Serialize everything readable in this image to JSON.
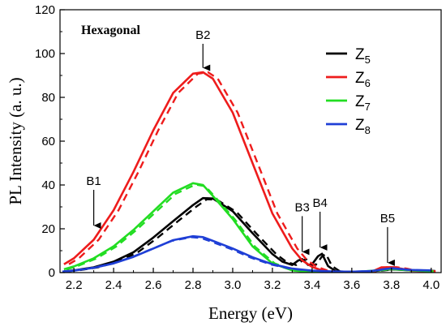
{
  "chart_data": {
    "type": "line",
    "inset_title": "Hexagonal",
    "xlabel": "Energy (eV)",
    "ylabel": "PL Intensity (a. u.)",
    "xlim": [
      2.13,
      4.05
    ],
    "ylim": [
      0,
      120
    ],
    "xticks": [
      2.2,
      2.4,
      2.6,
      2.8,
      3.0,
      3.2,
      3.4,
      3.6,
      3.8,
      4.0
    ],
    "xtick_labels": [
      "2.2",
      "2.4",
      "2.6",
      "2.8",
      "3.0",
      "3.2",
      "3.4",
      "3.6",
      "3.8",
      "4.0"
    ],
    "yticks": [
      0,
      20,
      40,
      60,
      80,
      100,
      120
    ],
    "ytick_labels": [
      "0",
      "20",
      "40",
      "60",
      "80",
      "100",
      "120"
    ],
    "grid": false,
    "legend_position": "top-right",
    "annotations": [
      {
        "label": "B1",
        "x": 2.3,
        "y_tip": 20
      },
      {
        "label": "B2",
        "x": 2.85,
        "y_tip": 92
      },
      {
        "label": "B3",
        "x": 3.35,
        "y_tip": 8
      },
      {
        "label": "B4",
        "x": 3.44,
        "y_tip": 10
      },
      {
        "label": "B5",
        "x": 3.78,
        "y_tip": 3
      }
    ],
    "series": [
      {
        "legend_main": "Z",
        "legend_sub": "5",
        "color": "#000000",
        "x": [
          2.15,
          2.2,
          2.3,
          2.4,
          2.5,
          2.6,
          2.7,
          2.8,
          2.85,
          2.9,
          3.0,
          3.1,
          3.2,
          3.25,
          3.3,
          3.33,
          3.35,
          3.38,
          3.4,
          3.43,
          3.45,
          3.48,
          3.52,
          3.6,
          3.7,
          3.8,
          3.9,
          4.0
        ],
        "y": [
          0.6,
          1.0,
          2.4,
          5.0,
          9.3,
          16.0,
          23.5,
          30.8,
          34.0,
          33.8,
          28.0,
          18.0,
          8.5,
          5.0,
          3.5,
          5.5,
          6.2,
          3.5,
          3.8,
          7.5,
          8.6,
          3.0,
          0.6,
          0.3,
          0.6,
          1.5,
          1.0,
          0.8
        ]
      },
      {
        "legend_main": "Z",
        "legend_sub": "6",
        "color": "#ee1c1c",
        "x": [
          2.15,
          2.2,
          2.3,
          2.4,
          2.5,
          2.6,
          2.7,
          2.8,
          2.85,
          2.9,
          3.0,
          3.1,
          3.2,
          3.3,
          3.35,
          3.4,
          3.45,
          3.5,
          3.6,
          3.7,
          3.75,
          3.8,
          3.85,
          3.9,
          4.0
        ],
        "y": [
          3.8,
          6.5,
          15.0,
          28.5,
          46.0,
          65.0,
          82.0,
          90.8,
          91.5,
          88.5,
          73.0,
          50.0,
          27.0,
          11.0,
          5.6,
          2.6,
          1.0,
          0.3,
          0.1,
          0.4,
          2.4,
          2.5,
          1.8,
          0.8,
          0.6
        ]
      },
      {
        "legend_main": "Z",
        "legend_sub": "7",
        "color": "#22dd22",
        "x": [
          2.15,
          2.2,
          2.3,
          2.4,
          2.5,
          2.6,
          2.7,
          2.8,
          2.85,
          2.9,
          3.0,
          3.1,
          3.2,
          3.3,
          3.4,
          3.5,
          3.6,
          3.7,
          3.8,
          3.9,
          4.0
        ],
        "y": [
          1.5,
          2.8,
          6.5,
          12.0,
          19.5,
          28.0,
          36.5,
          40.8,
          40.0,
          35.0,
          24.5,
          12.0,
          4.2,
          1.0,
          0.2,
          0.1,
          0.2,
          0.8,
          1.6,
          1.0,
          0.6
        ]
      },
      {
        "legend_main": "Z",
        "legend_sub": "8",
        "color": "#1f3fd6",
        "x": [
          2.15,
          2.2,
          2.3,
          2.4,
          2.5,
          2.6,
          2.7,
          2.8,
          2.85,
          2.9,
          3.0,
          3.1,
          3.2,
          3.3,
          3.4,
          3.5,
          3.6,
          3.7,
          3.8,
          3.9,
          4.0
        ],
        "y": [
          0.5,
          0.9,
          2.2,
          4.2,
          7.2,
          11.0,
          14.8,
          16.6,
          16.2,
          14.5,
          11.0,
          7.0,
          3.8,
          1.8,
          0.9,
          0.5,
          0.4,
          0.7,
          2.0,
          1.2,
          1.0
        ]
      }
    ]
  }
}
